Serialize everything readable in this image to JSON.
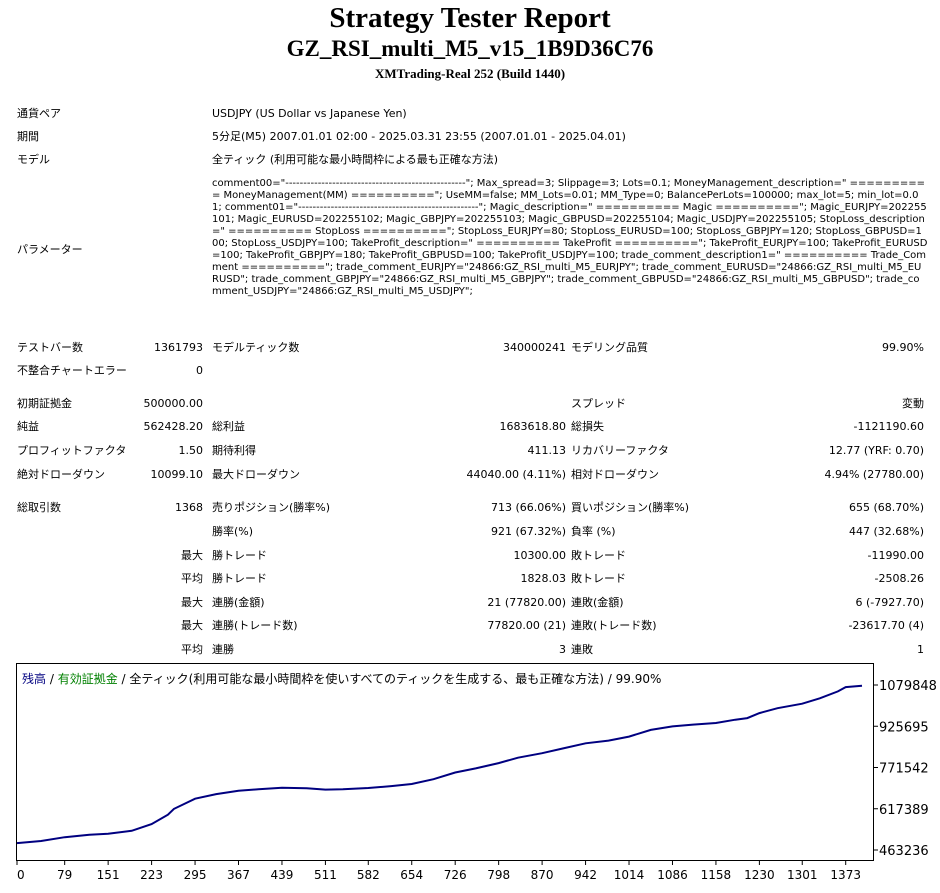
{
  "header": {
    "title": "Strategy Tester Report",
    "ea_name": "GZ_RSI_multi_M5_v15_1B9D36C76",
    "server": "XMTrading-Real 252 (Build 1440)"
  },
  "info": {
    "symbol_label": "通貨ペア",
    "symbol": "USDJPY (US Dollar vs Japanese Yen)",
    "period_label": "期間",
    "period": "5分足(M5) 2007.01.01 02:00 - 2025.03.31 23:55 (2007.01.01 - 2025.04.01)",
    "model_label": "モデル",
    "model": "全ティック (利用可能な最小時間枠による最も正確な方法)",
    "params_label": "パラメーター",
    "params": "comment00=\"--------------------------------------------------\"; Max_spread=3; Slippage=3; Lots=0.1; MoneyManagement_description=\" ========== MoneyManagement(MM) ==========\"; UseMM=false; MM_Lots=0.01; MM_Type=0; BalancePerLots=100000; max_lot=5; min_lot=0.01; comment01=\"--------------------------------------------------\"; Magic_description=\" ========== Magic ==========\"; Magic_EURJPY=202255101; Magic_EURUSD=202255102; Magic_GBPJPY=202255103; Magic_GBPUSD=202255104; Magic_USDJPY=202255105; StopLoss_description=\" ========== StopLoss ==========\"; StopLoss_EURJPY=80; StopLoss_EURUSD=100; StopLoss_GBPJPY=120; StopLoss_GBPUSD=100; StopLoss_USDJPY=100; TakeProfit_description=\" ========== TakeProfit ==========\"; TakeProfit_EURJPY=100; TakeProfit_EURUSD=100; TakeProfit_GBPJPY=180; TakeProfit_GBPUSD=100; TakeProfit_USDJPY=100; trade_comment_description1=\" ========== Trade_Comment ==========\"; trade_comment_EURJPY=\"24866:GZ_RSI_multi_M5_EURJPY\"; trade_comment_EURUSD=\"24866:GZ_RSI_multi_M5_EURUSD\"; trade_comment_GBPJPY=\"24866:GZ_RSI_multi_M5_GBPJPY\"; trade_comment_GBPUSD=\"24866:GZ_RSI_multi_M5_GBPUSD\"; trade_comment_USDJPY=\"24866:GZ_RSI_multi_M5_USDJPY\";"
  },
  "stats1": {
    "bars_label": "テストバー数",
    "bars": "1361793",
    "ticks_label": "モデルティック数",
    "ticks": "340000241",
    "quality_label": "モデリング品質",
    "quality": "99.90%",
    "errors_label": "不整合チャートエラー",
    "errors": "0"
  },
  "stats2": {
    "deposit_label": "初期証拠金",
    "deposit": "500000.00",
    "spread_label": "スプレッド",
    "spread": "変動",
    "net_label": "純益",
    "net": "562428.20",
    "gross_profit_label": "総利益",
    "gross_profit": "1683618.80",
    "gross_loss_label": "総損失",
    "gross_loss": "-1121190.60",
    "pf_label": "プロフィットファクタ",
    "pf": "1.50",
    "expected_label": "期待利得",
    "expected": "411.13",
    "recovery_label": "リカバリーファクタ",
    "recovery": "12.77 (YRF: 0.70)",
    "abs_dd_label": "絶対ドローダウン",
    "abs_dd": "10099.10",
    "max_dd_label": "最大ドローダウン",
    "max_dd": "44040.00 (4.11%)",
    "rel_dd_label": "相対ドローダウン",
    "rel_dd": "4.94% (27780.00)"
  },
  "stats3": {
    "trades_label": "総取引数",
    "trades": "1368",
    "short_label": "売りポジション(勝率%)",
    "short": "713 (66.06%)",
    "long_label": "買いポジション(勝率%)",
    "long": "655 (68.70%)",
    "winrate_label": "勝率(%)",
    "winrate": "921 (67.32%)",
    "lossrate_label": "負率 (%)",
    "lossrate": "447 (32.68%)",
    "max_label": "最大",
    "avg_label": "平均",
    "win_trade_label": "勝トレード",
    "loss_trade_label": "敗トレード",
    "largest_win": "10300.00",
    "largest_loss": "-11990.00",
    "avg_win": "1828.03",
    "avg_loss": "-2508.26",
    "consec_win_money_label": "連勝(金額)",
    "consec_win_money": "21 (77820.00)",
    "consec_loss_money_label": "連敗(金額)",
    "consec_loss_money": "6 (-7927.70)",
    "consec_win_count_label": "連勝(トレード数)",
    "consec_win_count": "77820.00 (21)",
    "consec_loss_count_label": "連敗(トレード数)",
    "consec_loss_count": "-23617.70 (4)",
    "avg_consec_win_label": "連勝",
    "avg_consec_win": "3",
    "avg_consec_loss_label": "連敗",
    "avg_consec_loss": "1"
  },
  "chart_title": {
    "balance": "残高",
    "sep1": " / ",
    "equity": "有効証拠金",
    "sep2": " / ",
    "rest": "全ティック(利用可能な最小時間枠を使いすべてのティックを生成する、最も正確な方法) / 99.90%",
    "balance_color": "#000080",
    "equity_color": "#008000"
  },
  "chart_data": {
    "type": "line",
    "series": [
      {
        "name": "残高",
        "color": "#000080",
        "points": [
          [
            0,
            489000
          ],
          [
            40,
            497000
          ],
          [
            79,
            511000
          ],
          [
            120,
            520000
          ],
          [
            151,
            524000
          ],
          [
            190,
            535000
          ],
          [
            223,
            560000
          ],
          [
            250,
            595000
          ],
          [
            260,
            617000
          ],
          [
            295,
            655000
          ],
          [
            330,
            672000
          ],
          [
            367,
            685000
          ],
          [
            400,
            690000
          ],
          [
            439,
            696000
          ],
          [
            480,
            694000
          ],
          [
            511,
            689000
          ],
          [
            540,
            690000
          ],
          [
            582,
            695000
          ],
          [
            620,
            702000
          ],
          [
            654,
            710000
          ],
          [
            690,
            728000
          ],
          [
            726,
            753000
          ],
          [
            760,
            768000
          ],
          [
            798,
            788000
          ],
          [
            830,
            808000
          ],
          [
            870,
            825000
          ],
          [
            905,
            843000
          ],
          [
            942,
            862000
          ],
          [
            980,
            872000
          ],
          [
            1014,
            887000
          ],
          [
            1050,
            912000
          ],
          [
            1086,
            925000
          ],
          [
            1120,
            932000
          ],
          [
            1158,
            938000
          ],
          [
            1190,
            950000
          ],
          [
            1210,
            956000
          ],
          [
            1230,
            975000
          ],
          [
            1260,
            993000
          ],
          [
            1301,
            1010000
          ],
          [
            1330,
            1030000
          ],
          [
            1360,
            1056000
          ],
          [
            1373,
            1072000
          ],
          [
            1390,
            1075000
          ],
          [
            1400,
            1077000
          ]
        ]
      }
    ],
    "x_ticks": [
      "0",
      "79",
      "151",
      "223",
      "295",
      "367",
      "439",
      "511",
      "582",
      "654",
      "726",
      "798",
      "870",
      "942",
      "1014",
      "1086",
      "1158",
      "1230",
      "1301",
      "1373"
    ],
    "y_ticks": [
      "1079848",
      "925695",
      "771542",
      "617389",
      "463236"
    ],
    "ylim": [
      463236,
      1079848
    ],
    "xlim": [
      0,
      1400
    ],
    "grid": false
  }
}
